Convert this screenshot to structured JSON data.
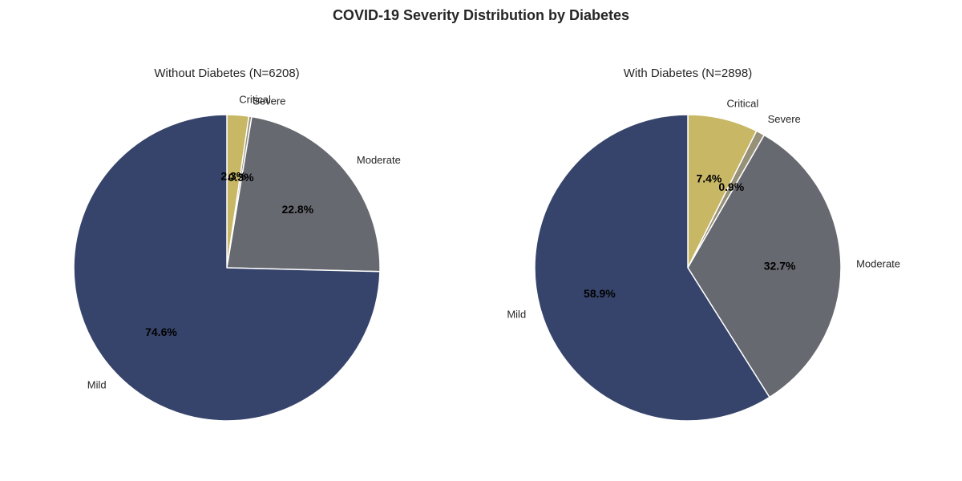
{
  "figure": {
    "title": "COVID-19 Severity Distribution by Diabetes"
  },
  "chart_data": [
    {
      "type": "pie",
      "title": "Without Diabetes (N=6208)",
      "categories": [
        "Critical",
        "Severe",
        "Moderate",
        "Mild"
      ],
      "values": [
        2.3,
        0.3,
        22.8,
        74.6
      ],
      "labels": [
        "2.3%",
        "0.3%",
        "22.8%",
        "74.6%"
      ],
      "colors": [
        "#c8b765",
        "#97917a",
        "#676970",
        "#36446b"
      ],
      "start_angle_deg": 90,
      "direction": "clockwise"
    },
    {
      "type": "pie",
      "title": "With Diabetes (N=2898)",
      "categories": [
        "Critical",
        "Severe",
        "Moderate",
        "Mild"
      ],
      "values": [
        7.4,
        0.9,
        32.7,
        58.9
      ],
      "labels": [
        "7.4%",
        "0.9%",
        "32.7%",
        "58.9%"
      ],
      "colors": [
        "#c8b765",
        "#97917a",
        "#676970",
        "#36446b"
      ],
      "start_angle_deg": 90,
      "direction": "clockwise"
    }
  ]
}
